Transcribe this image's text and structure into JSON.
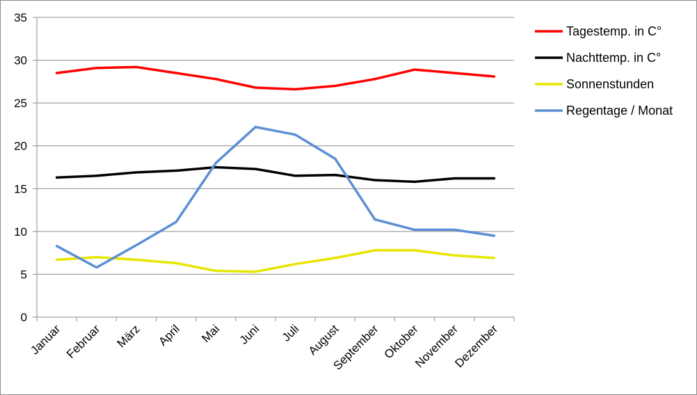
{
  "chart_data": {
    "type": "line",
    "title": "",
    "xlabel": "",
    "ylabel": "",
    "ylim": [
      0,
      35
    ],
    "yticks": [
      0,
      5,
      10,
      15,
      20,
      25,
      30,
      35
    ],
    "grid": true,
    "legend_position": "right",
    "categories": [
      "Januar",
      "Februar",
      "März",
      "April",
      "Mai",
      "Juni",
      "Juli",
      "August",
      "September",
      "Oktober",
      "November",
      "Dezember"
    ],
    "series": [
      {
        "name": "Tagestemp. in C°",
        "color": "#ff0000",
        "values": [
          28.5,
          29.1,
          29.2,
          28.5,
          27.8,
          26.8,
          26.6,
          27.0,
          27.8,
          28.9,
          28.5,
          28.1
        ]
      },
      {
        "name": "Nachttemp. in C°",
        "color": "#000000",
        "values": [
          16.3,
          16.5,
          16.9,
          17.1,
          17.5,
          17.3,
          16.5,
          16.6,
          16.0,
          15.8,
          16.2,
          16.2
        ]
      },
      {
        "name": "Sonnenstunden",
        "color": "#e6e600",
        "values": [
          6.7,
          7.0,
          6.7,
          6.3,
          5.4,
          5.3,
          6.2,
          6.9,
          7.8,
          7.8,
          7.2,
          6.9
        ]
      },
      {
        "name": "Regentage / Monat",
        "color": "#5b8fd4",
        "values": [
          8.3,
          5.8,
          8.4,
          11.1,
          18.0,
          22.2,
          21.3,
          18.5,
          11.4,
          10.2,
          10.2,
          9.5
        ]
      }
    ]
  }
}
